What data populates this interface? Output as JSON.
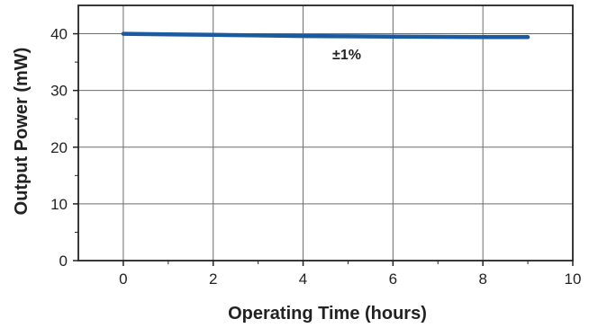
{
  "chart_data": {
    "type": "line",
    "xlabel": "Operating Time (hours)",
    "ylabel": "Output Power (mW)",
    "xlim": [
      -1,
      10
    ],
    "ylim": [
      0,
      45
    ],
    "x_ticks": [
      0,
      2,
      4,
      6,
      8,
      10
    ],
    "y_ticks": [
      0,
      10,
      20,
      30,
      40
    ],
    "grid": true,
    "annotation": "±1%",
    "series": [
      {
        "x": [
          0,
          1,
          2,
          3,
          4,
          5,
          6,
          7,
          8,
          9
        ],
        "y": [
          40.0,
          39.9,
          39.8,
          39.7,
          39.6,
          39.55,
          39.5,
          39.45,
          39.4,
          39.4
        ]
      }
    ],
    "colors": {
      "line": "#1a5aa0",
      "grid": "#6b6b6b",
      "frame": "#222222"
    }
  }
}
